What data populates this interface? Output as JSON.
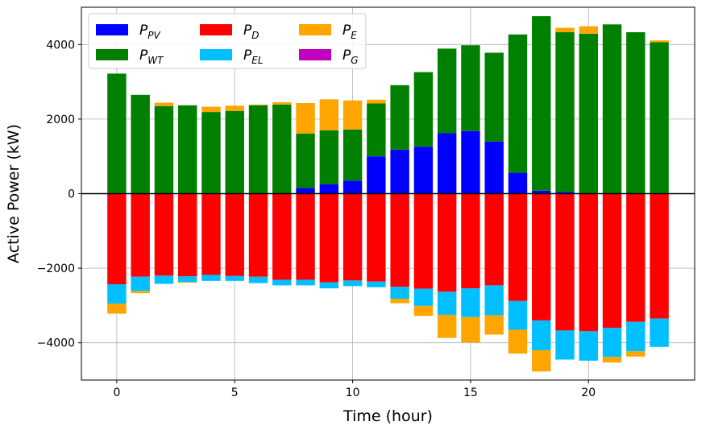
{
  "chart_data": {
    "type": "bar",
    "stacked": true,
    "title": "",
    "xlabel": "Time (hour)",
    "ylabel": "Active Power (kW)",
    "xlim": [
      -1.5,
      24.5
    ],
    "ylim": [
      -5000,
      5000
    ],
    "xticks": [
      0,
      5,
      10,
      15,
      20
    ],
    "yticks": [
      -4000,
      -2000,
      0,
      2000,
      4000
    ],
    "grid": true,
    "legend_position": "top-left",
    "legend_columns": 3,
    "x": [
      0,
      1,
      2,
      3,
      4,
      5,
      6,
      7,
      8,
      9,
      10,
      11,
      12,
      13,
      14,
      15,
      16,
      17,
      18,
      19,
      20,
      21,
      22,
      23
    ],
    "series": [
      {
        "key": "pv",
        "name_main": "P",
        "name_sub": "PV",
        "color": "#0000ff",
        "side": "positive",
        "values": [
          0,
          0,
          0,
          0,
          0,
          0,
          0,
          0,
          150,
          250,
          350,
          1000,
          1180,
          1260,
          1620,
          1680,
          1400,
          560,
          80,
          50,
          0,
          0,
          0,
          0
        ]
      },
      {
        "key": "wt",
        "name_main": "P",
        "name_sub": "WT",
        "color": "#008000",
        "side": "positive",
        "values": [
          3220,
          2650,
          2350,
          2370,
          2190,
          2220,
          2370,
          2390,
          1460,
          1450,
          1370,
          1420,
          1730,
          2000,
          2270,
          2300,
          2380,
          3710,
          4680,
          4280,
          4290,
          4540,
          4330,
          4060
        ]
      },
      {
        "key": "e",
        "name_main": "P",
        "name_sub": "E",
        "color": "#ffa500",
        "side": "positive",
        "values": [
          0,
          0,
          90,
          0,
          140,
          140,
          20,
          60,
          820,
          830,
          780,
          100,
          0,
          0,
          0,
          0,
          0,
          0,
          0,
          120,
          200,
          0,
          0,
          50
        ]
      },
      {
        "key": "d",
        "name_main": "P",
        "name_sub": "D",
        "color": "#ff0000",
        "side": "negative",
        "values": [
          -2430,
          -2230,
          -2200,
          -2220,
          -2180,
          -2210,
          -2230,
          -2310,
          -2310,
          -2380,
          -2330,
          -2360,
          -2500,
          -2550,
          -2630,
          -2540,
          -2460,
          -2880,
          -3400,
          -3670,
          -3690,
          -3600,
          -3440,
          -3350
        ]
      },
      {
        "key": "el",
        "name_main": "P",
        "name_sub": "EL",
        "color": "#00bfff",
        "side": "negative",
        "values": [
          -520,
          -380,
          -220,
          -150,
          -160,
          -130,
          -170,
          -150,
          -150,
          -160,
          -150,
          -150,
          -320,
          -460,
          -620,
          -770,
          -800,
          -770,
          -800,
          -780,
          -790,
          -780,
          -790,
          -760
        ]
      },
      {
        "key": "g",
        "name_main": "P",
        "name_sub": "G",
        "color": "#bf00bf",
        "side": "negative",
        "values": [
          0,
          0,
          0,
          0,
          0,
          0,
          0,
          0,
          0,
          0,
          0,
          0,
          0,
          0,
          0,
          0,
          0,
          0,
          0,
          0,
          0,
          0,
          0,
          0
        ]
      },
      {
        "key": "e_neg",
        "name_main": "",
        "name_sub": "",
        "color": "#ffa500",
        "side": "negative",
        "legend": false,
        "values": [
          -270,
          -60,
          0,
          -20,
          0,
          0,
          0,
          0,
          0,
          0,
          0,
          0,
          -120,
          -270,
          -620,
          -680,
          -520,
          -640,
          -570,
          0,
          0,
          -150,
          -140,
          0
        ]
      }
    ],
    "legend_order": [
      "pv",
      "wt",
      "d",
      "el",
      "e",
      "g"
    ]
  }
}
